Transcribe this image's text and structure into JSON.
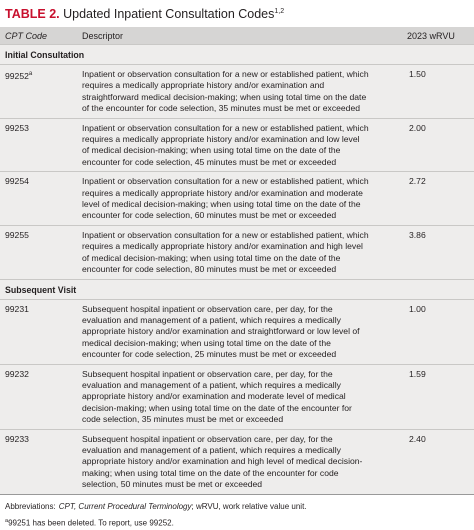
{
  "title": {
    "label": "TABLE 2.",
    "text": "Updated Inpatient Consultation Codes",
    "refs": "1,2"
  },
  "table": {
    "headers": [
      "CPT Code",
      "Descriptor",
      "2023 wRVU"
    ],
    "sections": [
      {
        "name": "Initial Consultation",
        "rows": [
          {
            "code": "99252",
            "marker": "a",
            "descriptor": "Inpatient or observation consultation for a new or established patient, which requires a medically appropriate history and/or examination and straightforward medical decision-making; when using total time on the date of the encounter for code selection, 35 minutes must be met or exceeded",
            "wrvu": "1.50"
          },
          {
            "code": "99253",
            "descriptor": "Inpatient or observation consultation for a new or established patient, which requires a medically appropriate history and/or examination and low level of medical decision-making; when using total time on the date of the encounter for code selection, 45 minutes must be met or exceeded",
            "wrvu": "2.00"
          },
          {
            "code": "99254",
            "descriptor": "Inpatient or observation consultation for a new or established patient, which requires a medically appropriate history and/or examination and moderate level of medical decision-making; when using total time on the date of the encounter for code selection, 60 minutes must be met or exceeded",
            "wrvu": "2.72"
          },
          {
            "code": "99255",
            "descriptor": "Inpatient or observation consultation for a new or established patient, which requires a medically appropriate history and/or examination and high level of medical decision-making; when using total time on the date of the encounter for code selection, 80 minutes must be met or exceeded",
            "wrvu": "3.86"
          }
        ]
      },
      {
        "name": "Subsequent Visit",
        "rows": [
          {
            "code": "99231",
            "descriptor": "Subsequent hospital inpatient or observation care, per day, for the evaluation and management of a patient, which requires a medically appropriate history and/or examination and straightforward or low level of medical decision-making; when using total time on the date of the encounter for code selection, 25 minutes must be met or exceeded",
            "wrvu": "1.00"
          },
          {
            "code": "99232",
            "descriptor": "Subsequent hospital inpatient or observation care, per day, for the evaluation and management of a patient, which requires a medically appropriate history and/or examination and moderate level of medical decision-making; when using total time on the date of the encounter for code selection, 35 minutes must be met or exceeded",
            "wrvu": "1.59"
          },
          {
            "code": "99233",
            "descriptor": "Subsequent hospital inpatient or observation care, per day, for the evaluation and management of a patient, which requires a medically appropriate history and/or examination and high level of medical decision-making; when using total time on the date of the encounter for code selection, 50 minutes must be met or exceeded",
            "wrvu": "2.40"
          }
        ]
      }
    ]
  },
  "footer": {
    "abbrev_label": "Abbreviations:",
    "abbrev_italic": "CPT, Current Procedural Terminology",
    "abbrev_rest": "; wRVU, work relative value unit.",
    "note_marker": "a",
    "note": "99251 has been deleted. To report, use 99252."
  }
}
